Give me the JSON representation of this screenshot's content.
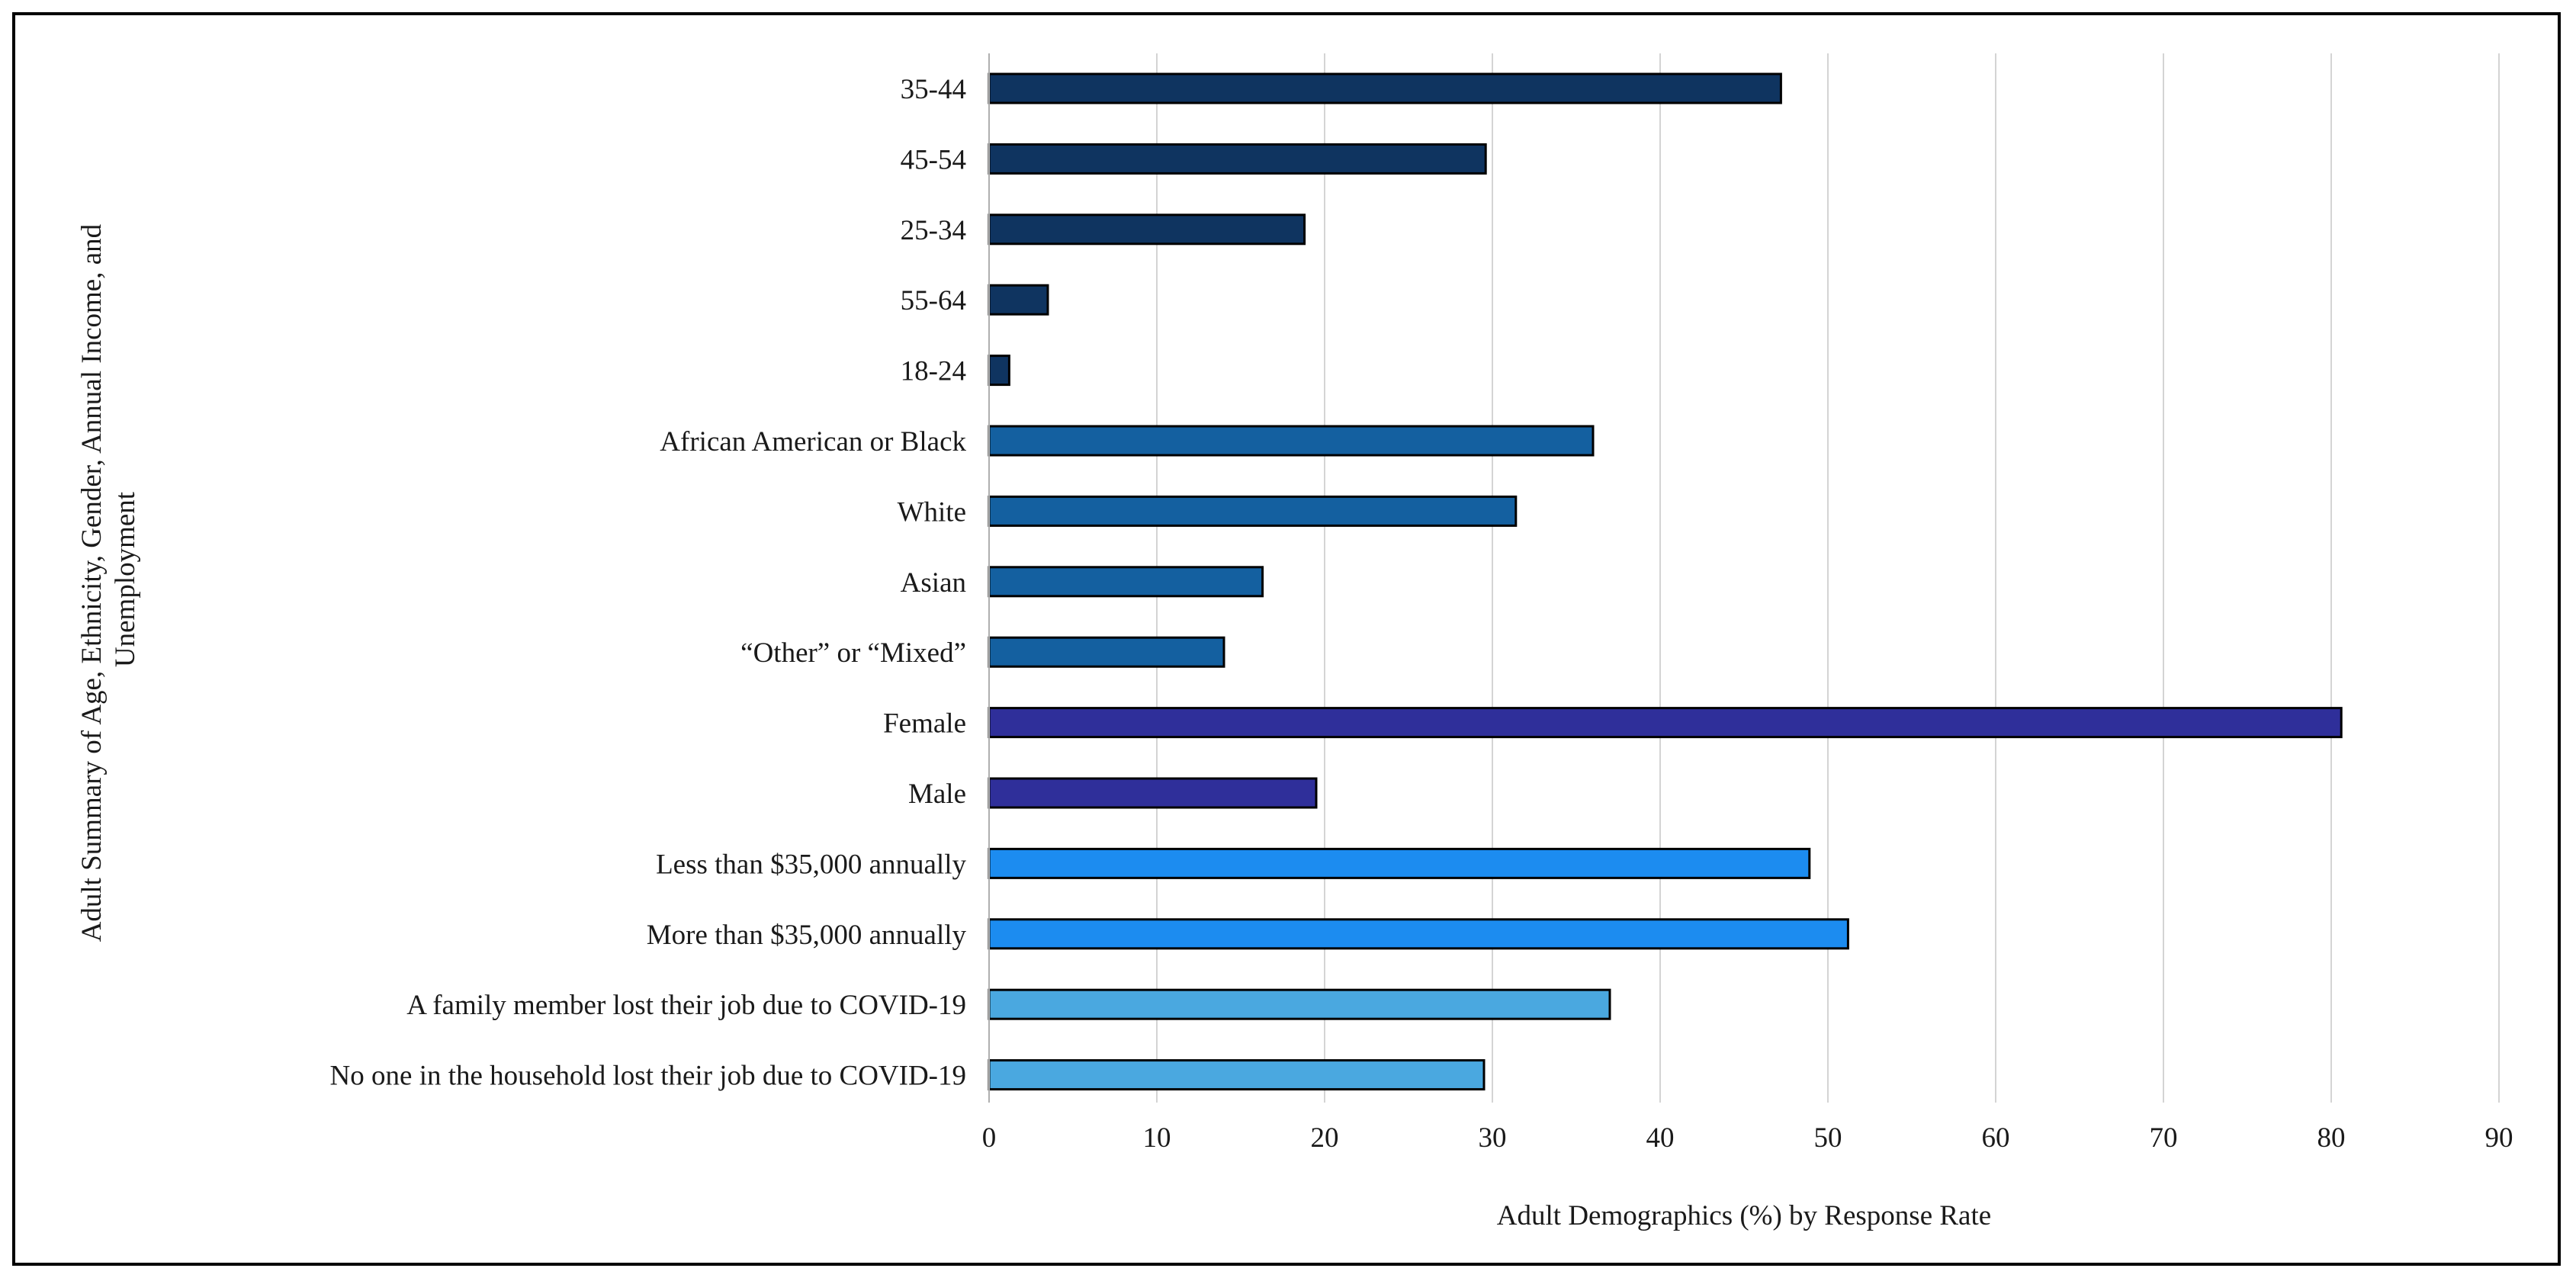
{
  "chart_data": {
    "type": "bar",
    "orientation": "horizontal",
    "title": "",
    "xlabel": "Adult Demographics (%) by Response Rate",
    "ylabel_lines": [
      "Adult Summary of Age, Ethnicity, Gender, Annual Income, and",
      "Unemployment"
    ],
    "xlim": [
      0,
      90
    ],
    "xticks": [
      0,
      10,
      20,
      30,
      40,
      50,
      60,
      70,
      80,
      90
    ],
    "grid": "vertical",
    "legend": "none",
    "categories": [
      "35-44",
      "45-54",
      "25-34",
      "55-64",
      "18-24",
      "African American or Black",
      "White",
      "Asian",
      "“Other” or “Mixed”",
      "Female",
      "Male",
      "Less than $35,000 annually",
      "More than $35,000 annually",
      "A family member lost their job due to COVID-19",
      "No one in the household lost their job due to COVID-19"
    ],
    "values": [
      47.2,
      29.6,
      18.8,
      3.5,
      1.2,
      36.0,
      31.4,
      16.3,
      14.0,
      80.6,
      19.5,
      48.9,
      51.2,
      37.0,
      29.5
    ],
    "groups": [
      "age",
      "age",
      "age",
      "age",
      "age",
      "ethnicity",
      "ethnicity",
      "ethnicity",
      "ethnicity",
      "gender",
      "gender",
      "income",
      "income",
      "employment",
      "employment"
    ],
    "colors": {
      "age": "#0f3460",
      "ethnicity": "#1460a0",
      "gender": "#2f2f9a",
      "income": "#1c8cf0",
      "employment": "#4aa8e0"
    }
  }
}
